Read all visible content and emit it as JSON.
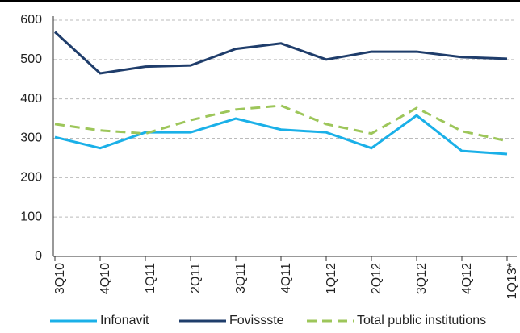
{
  "chart_data": {
    "type": "line",
    "categories": [
      "3Q10",
      "4Q10",
      "1Q11",
      "2Q11",
      "3Q11",
      "4Q11",
      "1Q12",
      "2Q12",
      "3Q12",
      "4Q12",
      "1Q13*"
    ],
    "series": [
      {
        "name": "Infonavit",
        "color": "#1ab0e8",
        "dashed": false,
        "values": [
          303,
          275,
          315,
          315,
          350,
          322,
          315,
          275,
          358,
          268,
          260
        ]
      },
      {
        "name": "Fovissste",
        "color": "#1f3d6b",
        "dashed": false,
        "values": [
          570,
          465,
          482,
          485,
          527,
          541,
          500,
          520,
          520,
          506,
          502
        ]
      },
      {
        "name": "Total public institutions",
        "color": "#9dc65a",
        "dashed": true,
        "values": [
          336,
          320,
          312,
          346,
          373,
          383,
          336,
          312,
          377,
          318,
          293
        ]
      }
    ],
    "ylim": [
      0,
      600
    ],
    "yticks": [
      0,
      100,
      200,
      300,
      400,
      500,
      600
    ],
    "grid": true,
    "legend": "bottom"
  }
}
